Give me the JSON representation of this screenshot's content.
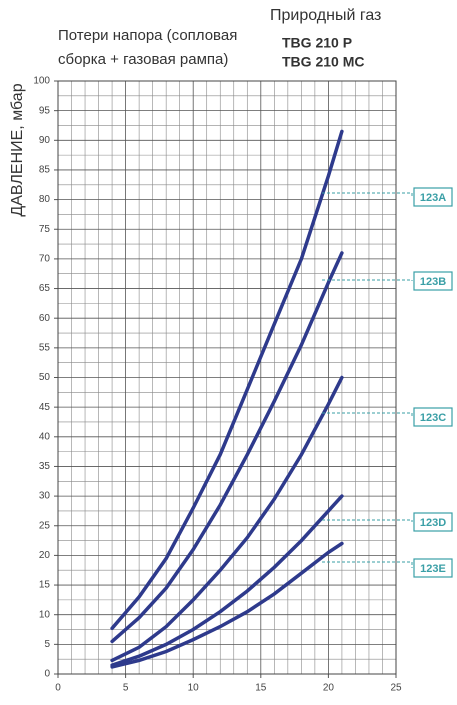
{
  "chart_data": {
    "type": "line",
    "subtitle_lines": [
      "Потери напора (сопловая",
      "сборка + газовая рампа)"
    ],
    "title": "Природный газ",
    "models": [
      "TBG 210 P",
      "TBG 210 MC"
    ],
    "ylabel": "ДАВЛЕНИЕ, мбар",
    "x": [
      4,
      6,
      8,
      10,
      12,
      14,
      16,
      18,
      20,
      21
    ],
    "series": [
      {
        "name": "123A",
        "color": "#2e3a8c",
        "values": [
          7.7,
          13,
          19.5,
          28,
          37,
          48,
          59,
          70,
          84,
          91.5
        ]
      },
      {
        "name": "123B",
        "color": "#2e3a8c",
        "values": [
          5.5,
          9.5,
          14.5,
          21,
          28.5,
          37,
          46,
          55.5,
          66,
          71
        ]
      },
      {
        "name": "123C",
        "color": "#2e3a8c",
        "values": [
          2.3,
          4.5,
          8,
          12.5,
          17.5,
          23,
          29.5,
          37,
          45.5,
          50
        ]
      },
      {
        "name": "123D",
        "color": "#2e3a8c",
        "values": [
          1.5,
          3,
          5,
          7.5,
          10.5,
          14,
          18,
          22.5,
          27.5,
          30
        ]
      },
      {
        "name": "123E",
        "color": "#2e3a8c",
        "values": [
          1.2,
          2.3,
          3.8,
          5.8,
          8,
          10.5,
          13.5,
          17,
          20.5,
          22
        ]
      }
    ],
    "label_color": "#3a9fa6",
    "xlim": [
      0,
      25
    ],
    "xticks": [
      0,
      5,
      10,
      15,
      20,
      25
    ],
    "ylim": [
      0,
      100
    ],
    "yticks": [
      0,
      5,
      10,
      15,
      20,
      25,
      30,
      35,
      40,
      45,
      50,
      55,
      60,
      65,
      70,
      75,
      80,
      85,
      90,
      95,
      100
    ],
    "grid": true
  }
}
